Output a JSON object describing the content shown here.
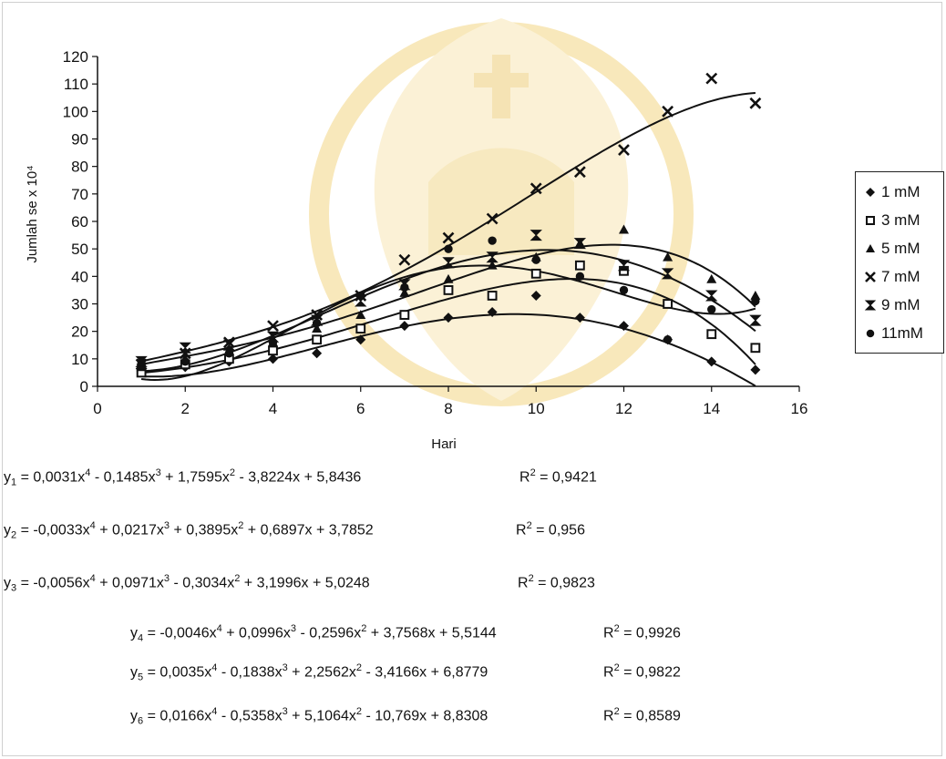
{
  "chart_data": {
    "type": "scatter",
    "xlabel": "Hari",
    "ylabel": "Jumlah se x 10⁴",
    "xlim": [
      0,
      16
    ],
    "ylim": [
      0,
      120
    ],
    "x_ticks": [
      "0",
      "2",
      "4",
      "6",
      "8",
      "10",
      "12",
      "14",
      "16"
    ],
    "y_ticks": [
      "0",
      "10",
      "20",
      "30",
      "40",
      "50",
      "60",
      "70",
      "80",
      "90",
      "100",
      "110",
      "120"
    ],
    "grid": false,
    "legend_position": "right",
    "trendline": "polynomial order 4",
    "series": [
      {
        "name": "1 mM",
        "marker": "diamond",
        "x": [
          1,
          2,
          3,
          4,
          5,
          6,
          7,
          8,
          9,
          10,
          11,
          12,
          13,
          14,
          15
        ],
        "y": [
          8,
          7,
          9,
          10,
          12,
          17,
          22,
          25,
          27,
          33,
          25,
          22,
          17,
          9,
          6
        ],
        "coef": [
          0.0031,
          -0.1485,
          1.7595,
          -3.8224,
          5.8436
        ]
      },
      {
        "name": "3 mM",
        "marker": "square",
        "x": [
          1,
          2,
          3,
          4,
          5,
          6,
          7,
          8,
          9,
          10,
          11,
          12,
          13,
          14,
          15
        ],
        "y": [
          5,
          8,
          10,
          13,
          17,
          21,
          26,
          35,
          33,
          41,
          44,
          42,
          30,
          19,
          14
        ],
        "coef": [
          -0.0033,
          0.0217,
          0.3895,
          0.6897,
          3.7852
        ]
      },
      {
        "name": "5 mM",
        "marker": "triangle",
        "x": [
          1,
          2,
          3,
          4,
          5,
          6,
          7,
          8,
          9,
          10,
          11,
          12,
          13,
          14,
          15
        ],
        "y": [
          7,
          10,
          13,
          16,
          21,
          26,
          34,
          39,
          44,
          47,
          52,
          57,
          47,
          39,
          33
        ],
        "coef": [
          -0.0056,
          0.0971,
          -0.3034,
          3.1996,
          5.0248
        ]
      },
      {
        "name": "7 mM",
        "marker": "x",
        "x": [
          1,
          2,
          3,
          4,
          5,
          6,
          7,
          8,
          9,
          10,
          11,
          12,
          13,
          14,
          15
        ],
        "y": [
          8,
          12,
          16,
          22,
          26,
          33,
          46,
          54,
          61,
          72,
          78,
          86,
          100,
          112,
          103
        ],
        "coef": [
          -0.0046,
          0.0996,
          -0.2596,
          3.7568,
          5.5144
        ]
      },
      {
        "name": "9 mM",
        "marker": "hourglass",
        "x": [
          1,
          2,
          3,
          4,
          5,
          6,
          7,
          8,
          9,
          10,
          11,
          12,
          13,
          14,
          15
        ],
        "y": [
          9,
          14,
          15,
          18,
          24,
          31,
          37,
          45,
          47,
          55,
          52,
          44,
          41,
          33,
          24
        ],
        "coef": [
          0.0035,
          -0.1838,
          2.2562,
          -3.4166,
          6.8779
        ]
      },
      {
        "name": "11mM",
        "marker": "circle",
        "x": [
          1,
          2,
          3,
          4,
          5,
          6,
          7,
          8,
          9,
          10,
          11,
          12,
          13,
          14,
          15
        ],
        "y": [
          9,
          9,
          12,
          16,
          23,
          33,
          36,
          50,
          53,
          46,
          40,
          35,
          17,
          28,
          31
        ],
        "coef": [
          0.0166,
          -0.5358,
          5.1064,
          -10.769,
          8.8308
        ]
      }
    ],
    "equations": [
      {
        "lhs": "y",
        "sub": "1",
        "terms": [
          "0,0031x",
          "4",
          " - 0,1485x",
          "3",
          " + 1,7595x",
          "2",
          " - 3,8224x + 5,8436"
        ],
        "r2_label": "R",
        "r2_value": " = 0,9421"
      },
      {
        "lhs": "y",
        "sub": "2",
        "terms": [
          "-0,0033x",
          "4",
          " + 0,0217x",
          "3",
          " + 0,3895x",
          "2",
          " + 0,6897x + 3,7852"
        ],
        "r2_label": "R",
        "r2_value": " = 0,956"
      },
      {
        "lhs": "y",
        "sub": "3",
        "terms": [
          "-0,0056x",
          "4",
          " + 0,0971x",
          "3",
          " - 0,3034x",
          "2",
          " + 3,1996x + 5,0248"
        ],
        "r2_label": "R",
        "r2_value": " = 0,9823"
      },
      {
        "lhs": "y",
        "sub": "4",
        "terms": [
          "-0,0046x",
          "4",
          " + 0,0996x",
          "3",
          " - 0,2596x",
          "2",
          " + 3,7568x + 5,5144"
        ],
        "r2_label": "R",
        "r2_value": " = 0,9926"
      },
      {
        "lhs": "y",
        "sub": "5",
        "terms": [
          "0,0035x",
          "4",
          " - 0,1838x",
          "3",
          " + 2,2562x",
          "2",
          " - 3,4166x + 6,8779"
        ],
        "r2_label": "R",
        "r2_value": " = 0,9822"
      },
      {
        "lhs": "y",
        "sub": "6",
        "terms": [
          "0,0166x",
          "4",
          " - 0,5358x",
          "3",
          " + 5,1064x",
          "2",
          " - 10,769x + 8,8308"
        ],
        "r2_label": "R",
        "r2_value": " = 0,8589"
      }
    ],
    "r2_superscript": "2"
  },
  "colors": {
    "ink": "#111111",
    "watermark": "#f2d27a"
  }
}
